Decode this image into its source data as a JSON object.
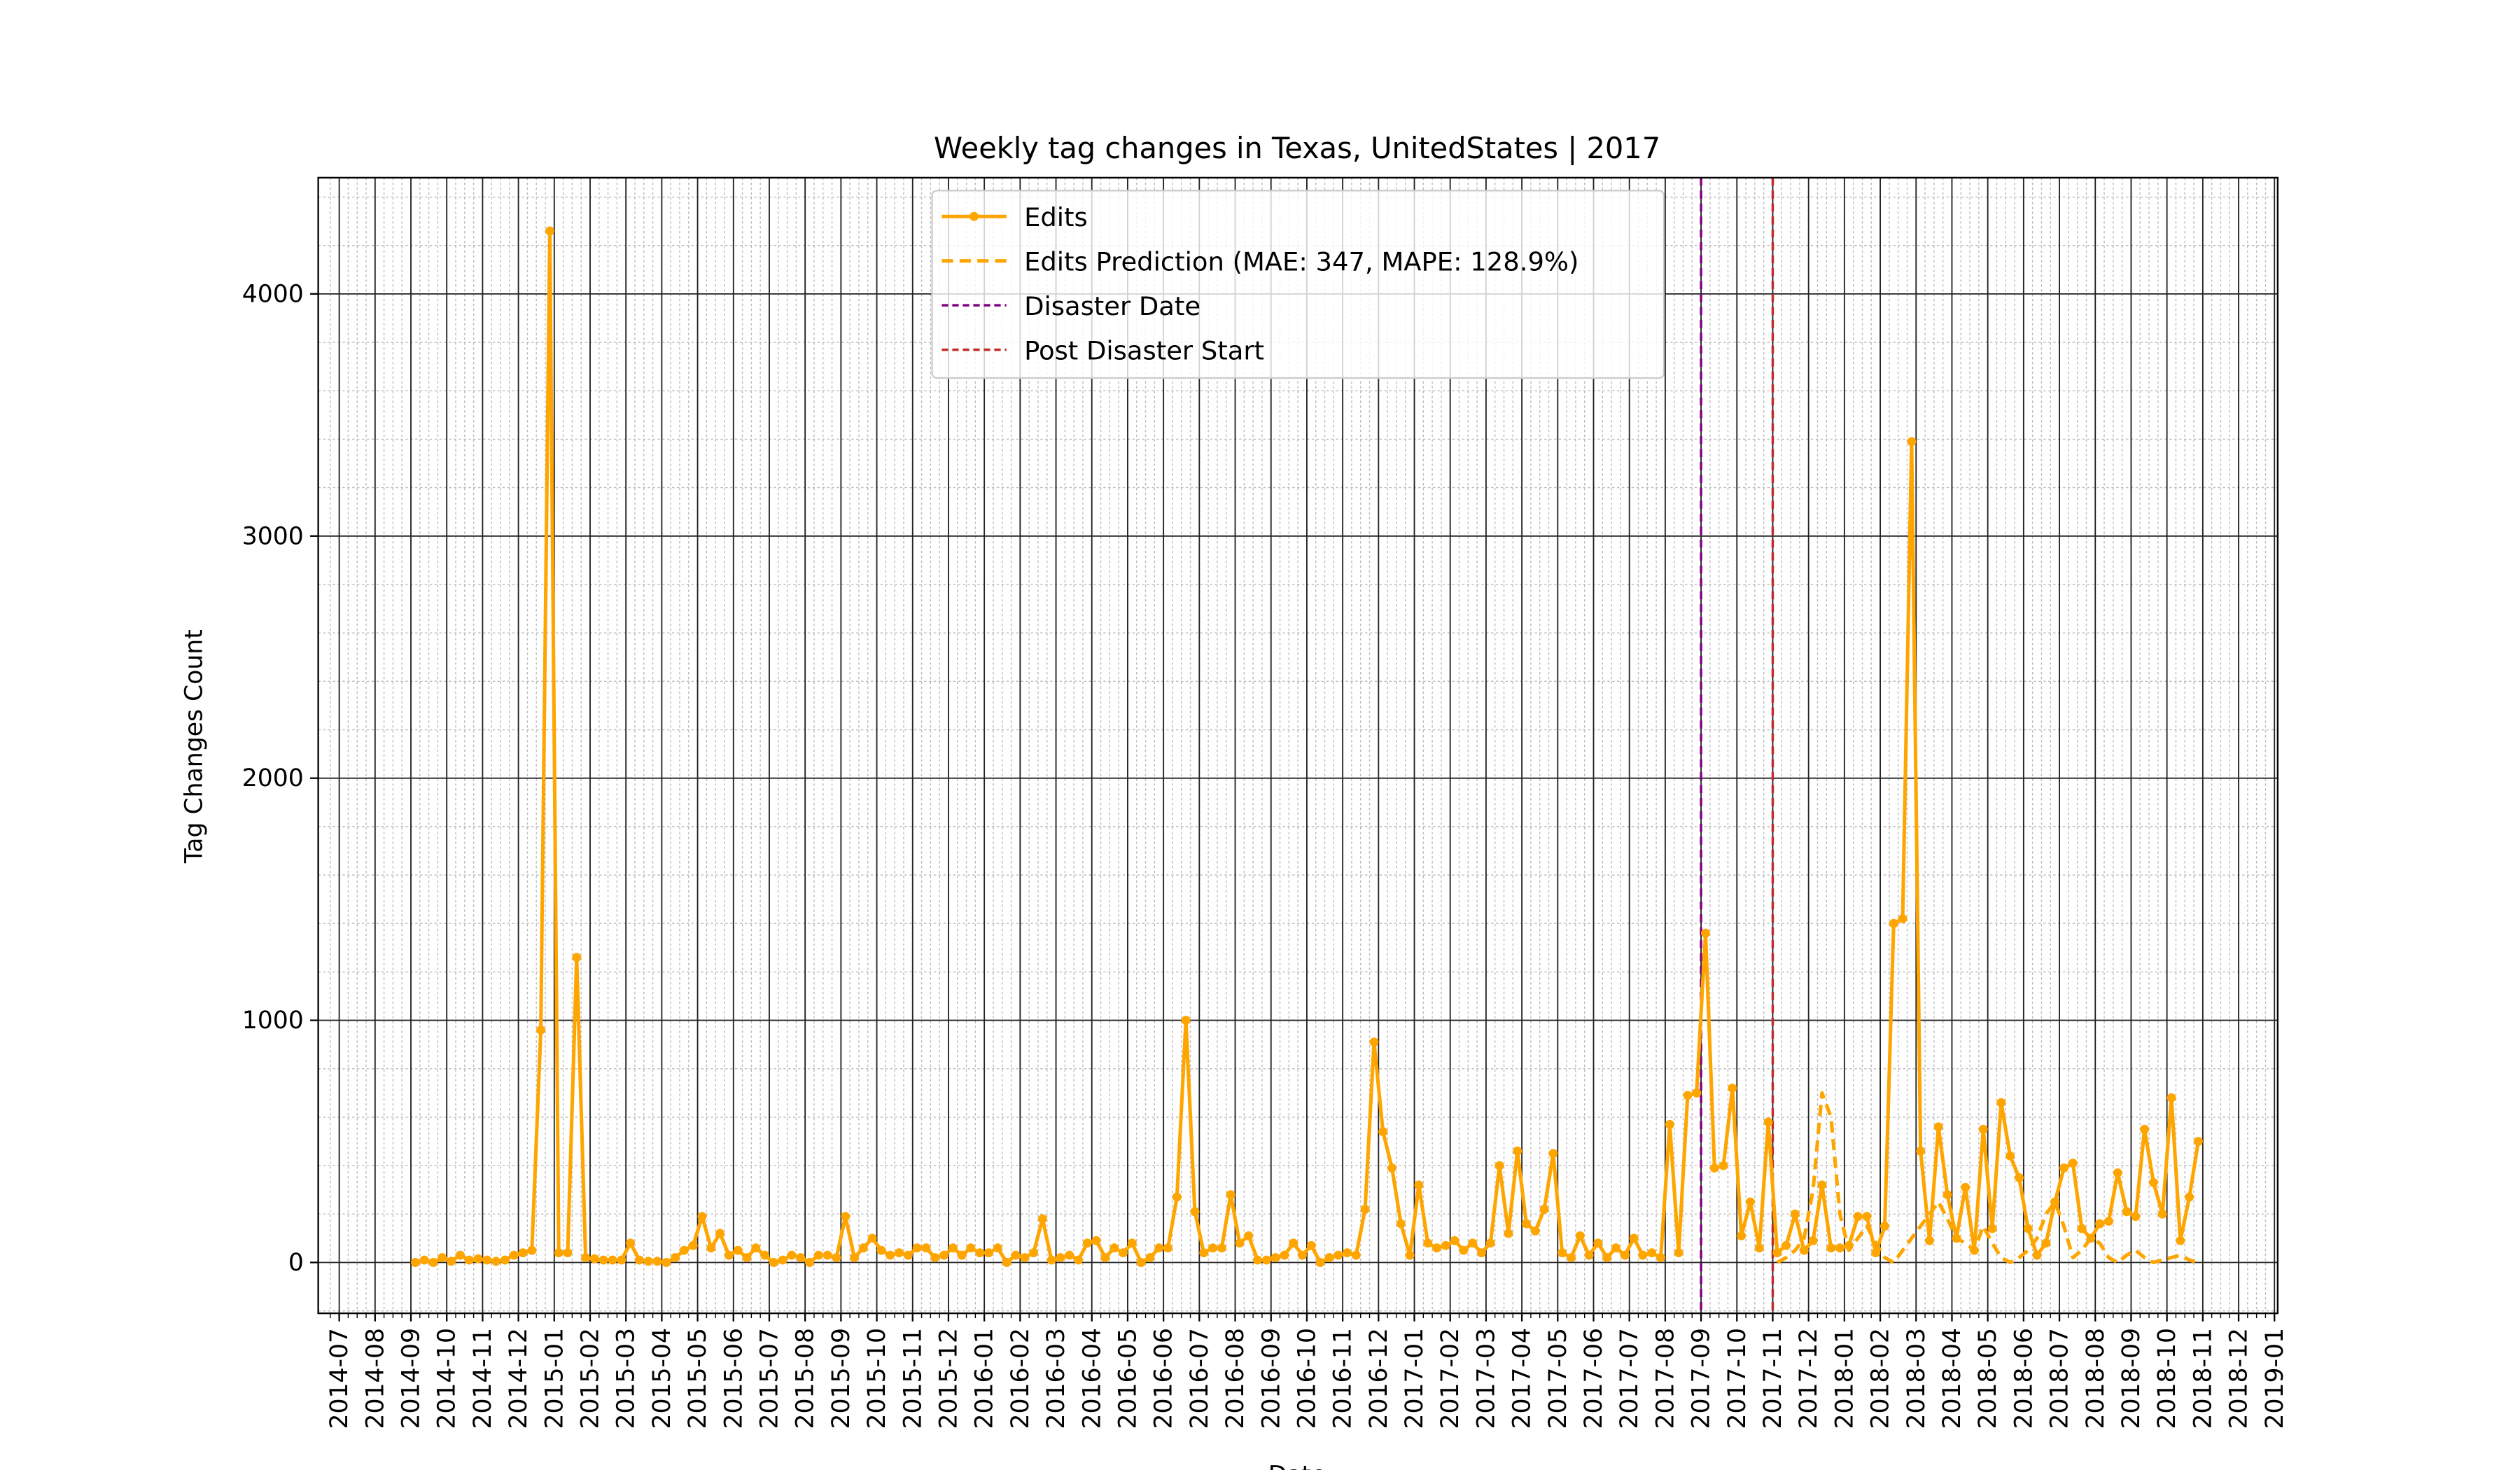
{
  "chart_data": {
    "type": "line",
    "title": "Weekly tag changes in Texas, UnitedStates | 2017",
    "xlabel": "Date",
    "ylabel": "Tag Changes Count",
    "x": [
      "2014-09",
      "2014-09",
      "2014-09",
      "2014-09",
      "2014-10",
      "2014-10",
      "2014-10",
      "2014-10",
      "2014-11",
      "2014-11",
      "2014-11",
      "2014-11",
      "2014-12",
      "2014-12",
      "2014-12",
      "2014-12",
      "2015-01",
      "2015-01",
      "2015-01",
      "2015-01",
      "2015-02",
      "2015-02",
      "2015-02",
      "2015-02",
      "2015-03",
      "2015-03",
      "2015-03",
      "2015-03",
      "2015-04",
      "2015-04",
      "2015-04",
      "2015-04",
      "2015-05",
      "2015-05",
      "2015-05",
      "2015-05",
      "2015-06",
      "2015-06",
      "2015-06",
      "2015-06",
      "2015-07",
      "2015-07",
      "2015-07",
      "2015-07",
      "2015-08",
      "2015-08",
      "2015-08",
      "2015-08",
      "2015-09",
      "2015-09",
      "2015-09",
      "2015-09",
      "2015-10",
      "2015-10",
      "2015-10",
      "2015-10",
      "2015-11",
      "2015-11",
      "2015-11",
      "2015-11",
      "2015-12",
      "2015-12",
      "2015-12",
      "2015-12",
      "2016-01",
      "2016-01",
      "2016-01",
      "2016-01",
      "2016-02",
      "2016-02",
      "2016-02",
      "2016-02",
      "2016-03",
      "2016-03",
      "2016-03",
      "2016-03",
      "2016-04",
      "2016-04",
      "2016-04",
      "2016-04",
      "2016-05",
      "2016-05",
      "2016-05",
      "2016-05",
      "2016-06",
      "2016-06",
      "2016-06",
      "2016-06",
      "2016-07",
      "2016-07",
      "2016-07",
      "2016-07",
      "2016-08",
      "2016-08",
      "2016-08",
      "2016-08",
      "2016-09",
      "2016-09",
      "2016-09",
      "2016-09",
      "2016-10",
      "2016-10",
      "2016-10",
      "2016-10",
      "2016-11",
      "2016-11",
      "2016-11",
      "2016-11",
      "2016-12",
      "2016-12",
      "2016-12",
      "2016-12",
      "2017-01",
      "2017-01",
      "2017-01",
      "2017-01",
      "2017-02",
      "2017-02",
      "2017-02",
      "2017-02",
      "2017-03",
      "2017-03",
      "2017-03",
      "2017-03",
      "2017-04",
      "2017-04",
      "2017-04",
      "2017-04",
      "2017-05",
      "2017-05",
      "2017-05",
      "2017-05",
      "2017-06",
      "2017-06",
      "2017-06",
      "2017-06",
      "2017-07",
      "2017-07",
      "2017-07",
      "2017-07",
      "2017-08",
      "2017-08",
      "2017-08",
      "2017-08",
      "2017-09",
      "2017-09",
      "2017-09",
      "2017-09",
      "2017-10",
      "2017-10",
      "2017-10",
      "2017-10",
      "2017-11",
      "2017-11",
      "2017-11",
      "2017-11",
      "2017-12",
      "2017-12",
      "2017-12",
      "2017-12",
      "2018-01",
      "2018-01",
      "2018-01",
      "2018-01",
      "2018-02",
      "2018-02",
      "2018-02",
      "2018-02",
      "2018-03",
      "2018-03",
      "2018-03",
      "2018-03",
      "2018-04",
      "2018-04",
      "2018-04",
      "2018-04",
      "2018-05",
      "2018-05",
      "2018-05",
      "2018-05",
      "2018-06",
      "2018-06",
      "2018-06",
      "2018-06",
      "2018-07",
      "2018-07",
      "2018-07",
      "2018-07",
      "2018-08",
      "2018-08",
      "2018-08",
      "2018-08",
      "2018-09",
      "2018-09",
      "2018-09",
      "2018-09",
      "2018-10",
      "2018-10",
      "2018-10",
      "2018-10"
    ],
    "series": [
      {
        "name": "Edits",
        "color": "#ffa500",
        "style": "solid",
        "marker": true,
        "values": [
          0,
          10,
          0,
          20,
          5,
          30,
          10,
          15,
          10,
          5,
          10,
          30,
          40,
          50,
          960,
          4260,
          40,
          40,
          1260,
          20,
          15,
          10,
          10,
          10,
          80,
          10,
          5,
          5,
          0,
          20,
          50,
          70,
          190,
          60,
          120,
          30,
          50,
          20,
          60,
          30,
          0,
          10,
          30,
          20,
          0,
          30,
          30,
          20,
          190,
          20,
          60,
          100,
          50,
          30,
          40,
          30,
          60,
          60,
          20,
          30,
          60,
          30,
          60,
          40,
          40,
          60,
          0,
          30,
          20,
          40,
          180,
          10,
          20,
          30,
          10,
          80,
          90,
          20,
          60,
          40,
          80,
          0,
          20,
          60,
          60,
          270,
          1000,
          210,
          40,
          60,
          60,
          280,
          80,
          110,
          10,
          10,
          20,
          30,
          80,
          30,
          70,
          0,
          20,
          30,
          40,
          30,
          220,
          910,
          540,
          390,
          160,
          30,
          320,
          80,
          60,
          70,
          90,
          50,
          80,
          40,
          80,
          400,
          120,
          460,
          160,
          130,
          220,
          450,
          40,
          20,
          110,
          30,
          80,
          20,
          60,
          30,
          100,
          30,
          40,
          20,
          570,
          40,
          690,
          700,
          1360,
          390,
          400,
          720,
          110,
          250,
          60,
          580,
          40,
          70,
          200,
          50,
          90,
          320,
          60,
          60,
          70,
          190,
          190,
          40,
          150,
          1400,
          1420,
          3390,
          460,
          90,
          560,
          280,
          100,
          310,
          50,
          550,
          140,
          660,
          440,
          350,
          140,
          30,
          80,
          250,
          390,
          410,
          140,
          100,
          160,
          170,
          370,
          210,
          190,
          550,
          330,
          200,
          680,
          90,
          270,
          500
        ]
      },
      {
        "name": "Edits Prediction (MAE: 347, MAPE: 128.9%)",
        "color": "#ffa500",
        "style": "dashed",
        "marker": false,
        "values": [
          null,
          null,
          null,
          null,
          null,
          null,
          null,
          null,
          null,
          null,
          null,
          null,
          null,
          null,
          null,
          null,
          null,
          null,
          null,
          null,
          null,
          null,
          null,
          null,
          null,
          null,
          null,
          null,
          null,
          null,
          null,
          null,
          null,
          null,
          null,
          null,
          null,
          null,
          null,
          null,
          null,
          null,
          null,
          null,
          null,
          null,
          null,
          null,
          null,
          null,
          null,
          null,
          null,
          null,
          null,
          null,
          null,
          null,
          null,
          null,
          null,
          null,
          null,
          null,
          null,
          null,
          null,
          null,
          null,
          null,
          null,
          null,
          null,
          null,
          null,
          null,
          null,
          null,
          null,
          null,
          null,
          null,
          null,
          null,
          null,
          null,
          null,
          null,
          null,
          null,
          null,
          null,
          null,
          null,
          null,
          null,
          null,
          null,
          null,
          null,
          null,
          null,
          null,
          null,
          null,
          null,
          null,
          null,
          null,
          null,
          null,
          null,
          null,
          null,
          null,
          null,
          null,
          null,
          null,
          null,
          null,
          null,
          null,
          null,
          null,
          null,
          null,
          null,
          null,
          null,
          null,
          null,
          null,
          null,
          null,
          null,
          null,
          null,
          null,
          null,
          null,
          null,
          null,
          null,
          null,
          null,
          null,
          null,
          null,
          null,
          null,
          null,
          0,
          20,
          50,
          100,
          300,
          700,
          600,
          200,
          50,
          100,
          150,
          80,
          20,
          0,
          50,
          100,
          150,
          200,
          250,
          180,
          100,
          80,
          50,
          150,
          80,
          20,
          0,
          20,
          50,
          100,
          200,
          250,
          150,
          20,
          50,
          100,
          80,
          20,
          0,
          30,
          50,
          20,
          0,
          10,
          20,
          30,
          10,
          0
        ]
      }
    ],
    "vlines": [
      {
        "name": "Disaster Date",
        "x": "2017-09",
        "color": "#800080"
      },
      {
        "name": "Post Disaster Start",
        "x": "2017-11",
        "color": "#c62828"
      }
    ],
    "xlim": [
      "2014-07",
      "2019-01"
    ],
    "xticks": [
      "2014-07",
      "2014-08",
      "2014-09",
      "2014-10",
      "2014-11",
      "2014-12",
      "2015-01",
      "2015-02",
      "2015-03",
      "2015-04",
      "2015-05",
      "2015-06",
      "2015-07",
      "2015-08",
      "2015-09",
      "2015-10",
      "2015-11",
      "2015-12",
      "2016-01",
      "2016-02",
      "2016-03",
      "2016-04",
      "2016-05",
      "2016-06",
      "2016-07",
      "2016-08",
      "2016-09",
      "2016-10",
      "2016-11",
      "2016-12",
      "2017-01",
      "2017-02",
      "2017-03",
      "2017-04",
      "2017-05",
      "2017-06",
      "2017-07",
      "2017-08",
      "2017-09",
      "2017-10",
      "2017-11",
      "2017-12",
      "2018-01",
      "2018-02",
      "2018-03",
      "2018-04",
      "2018-05",
      "2018-06",
      "2018-07",
      "2018-08",
      "2018-09",
      "2018-10",
      "2018-11",
      "2018-12",
      "2019-01"
    ],
    "ylim": [
      -210,
      4480
    ],
    "yticks": [
      0,
      1000,
      2000,
      3000,
      4000
    ],
    "grid": true,
    "minor_grid": true,
    "legend": "upper center"
  }
}
